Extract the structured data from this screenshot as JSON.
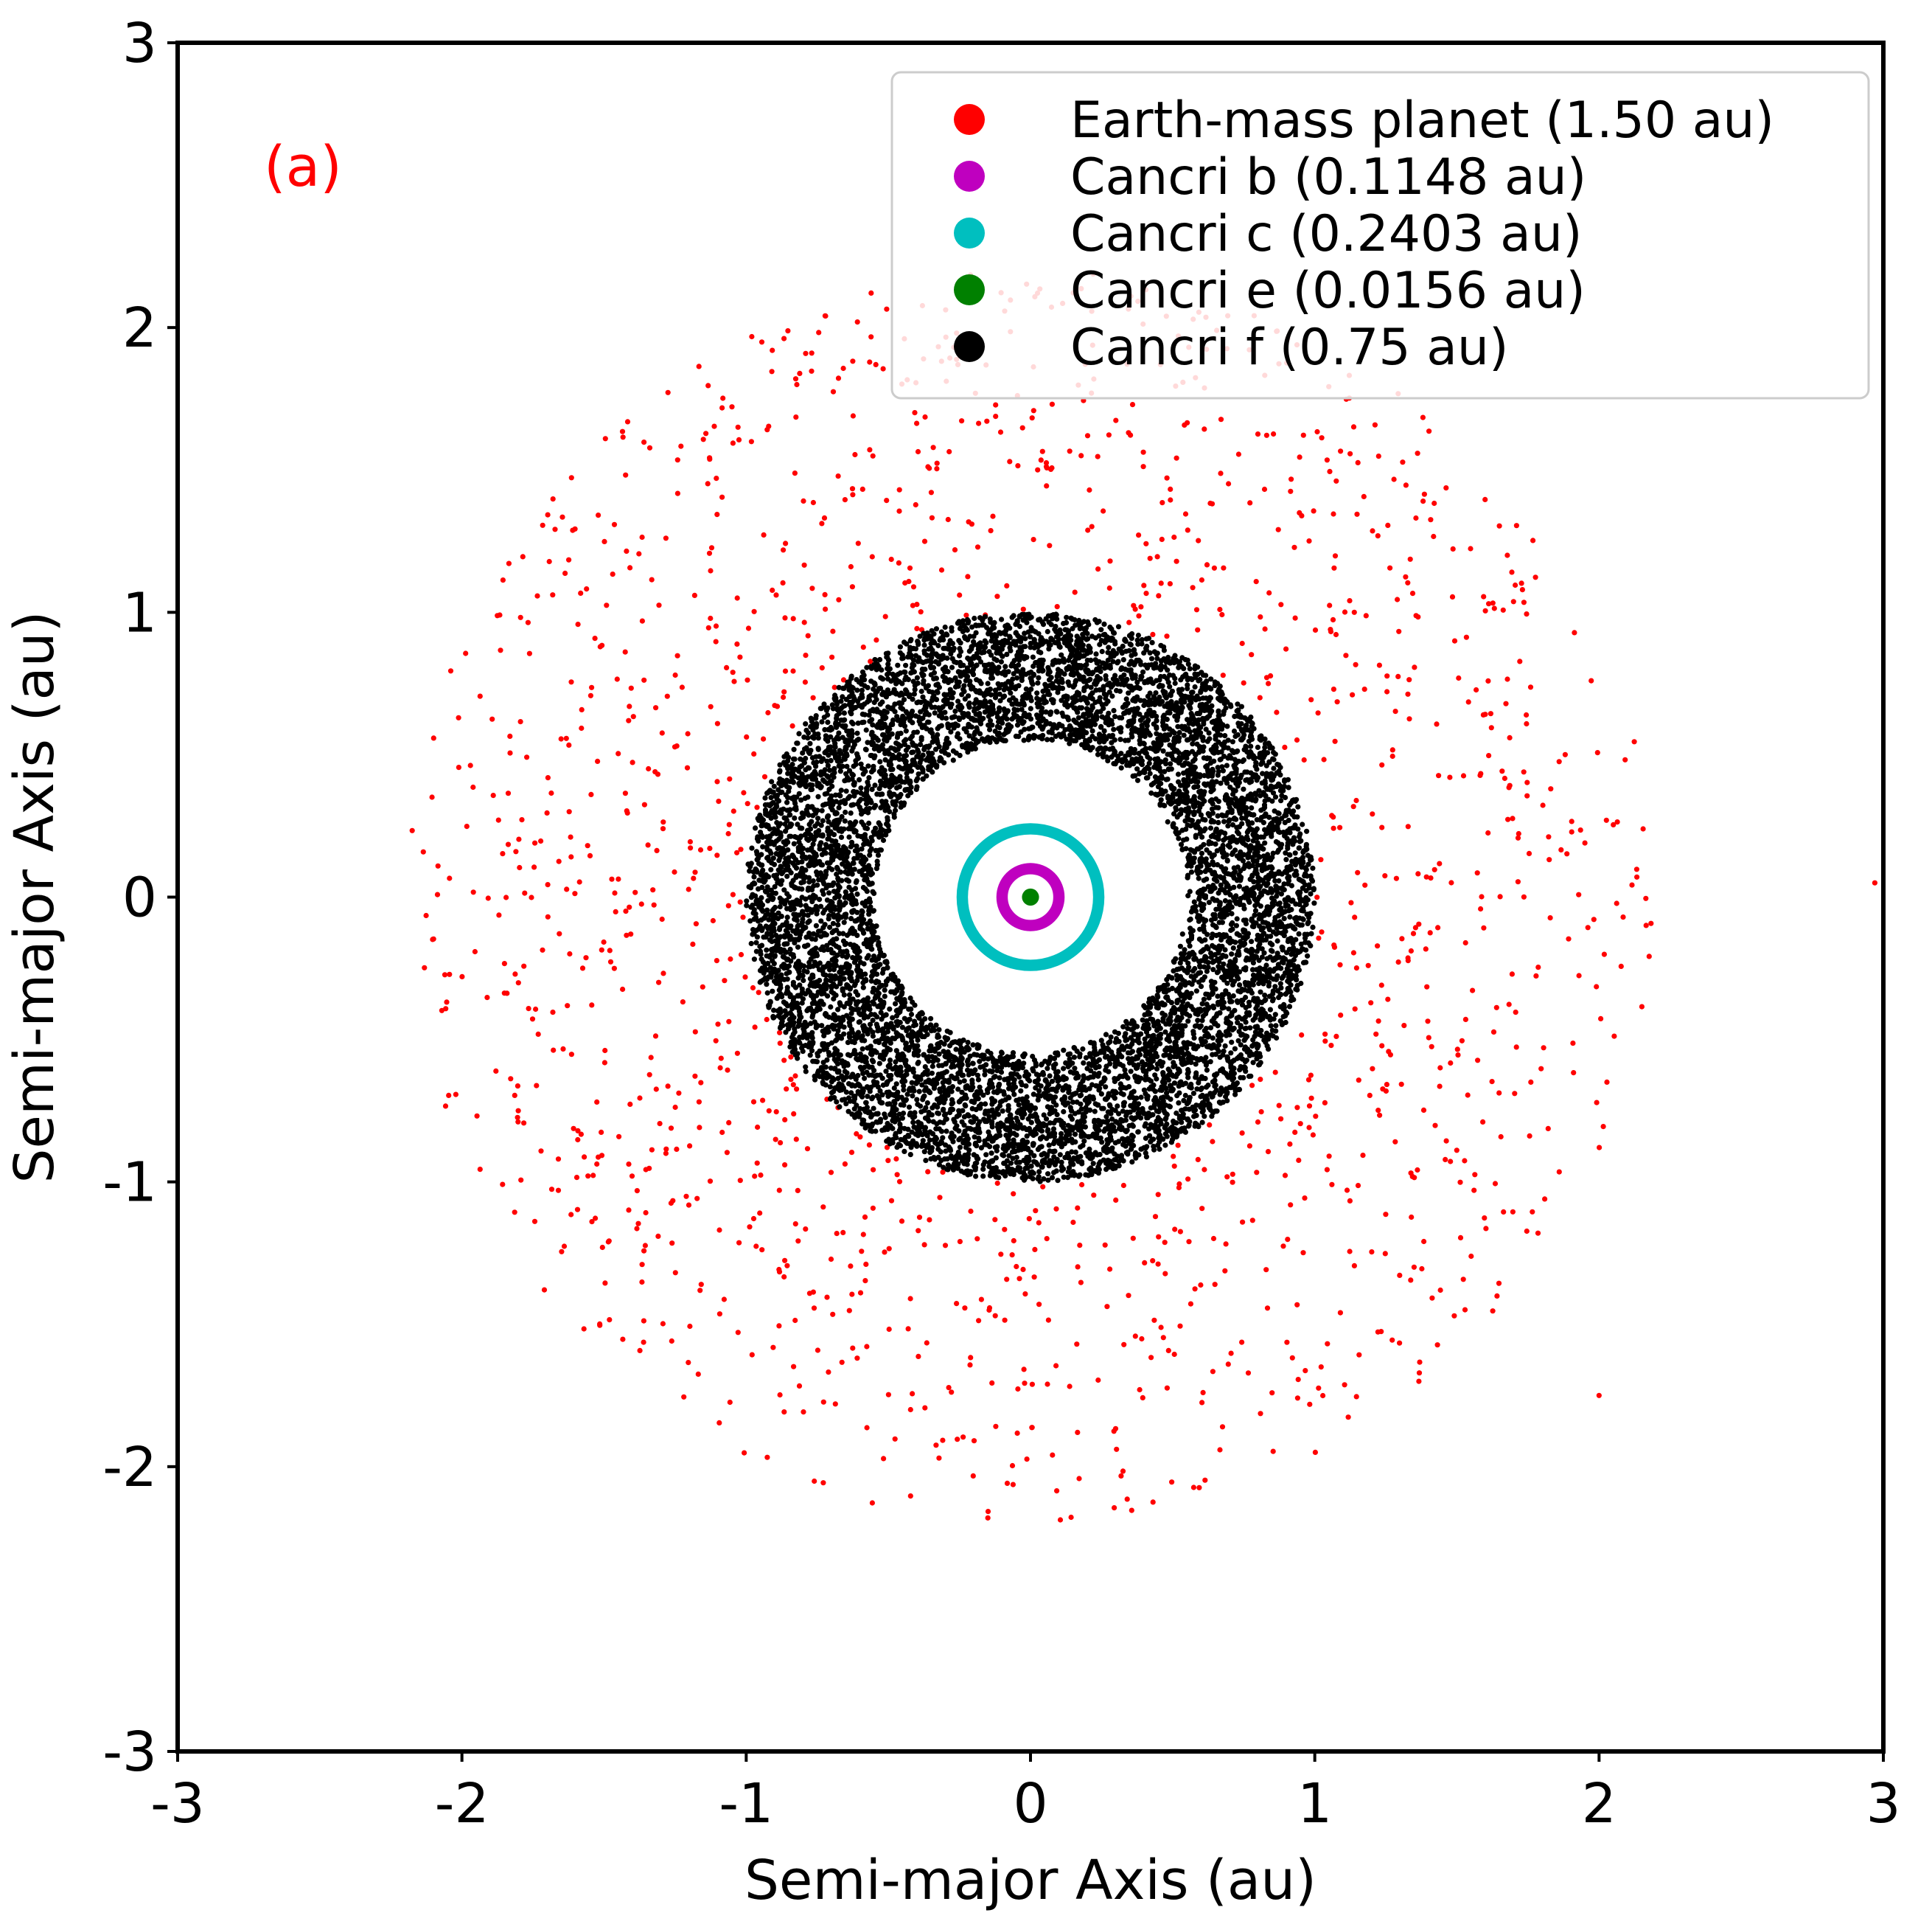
{
  "chart_data": {
    "type": "scatter",
    "panel_label": "(a)",
    "panel_label_color": "#ff0000",
    "xlabel": "Semi-major Axis (au)",
    "ylabel": "Semi-major Axis (au)",
    "xlim": [
      -3,
      3
    ],
    "ylim": [
      -3,
      3
    ],
    "xticks": [
      -3,
      -2,
      -1,
      0,
      1,
      2,
      3
    ],
    "yticks": [
      -3,
      -2,
      -1,
      0,
      1,
      2,
      3
    ],
    "xtick_labels": [
      "-3",
      "-2",
      "-1",
      "0",
      "1",
      "2",
      "3"
    ],
    "ytick_labels": [
      "-3",
      "-2",
      "-1",
      "0",
      "1",
      "2",
      "3"
    ],
    "grid": false,
    "legend_position": "top-right",
    "series": [
      {
        "name": "Earth-mass planet (1.50 au)",
        "color": "#ff0000",
        "distribution": "scattered annulus",
        "r_min": 1.0,
        "r_max": 2.2,
        "n_points": 1400,
        "outliers": [
          [
            2.97,
            0.05
          ],
          [
            2.0,
            -1.75
          ],
          [
            -0.15,
            -2.18
          ]
        ]
      },
      {
        "name": "Cancri b (0.1148 au)",
        "color": "#bf00bf",
        "distribution": "ring",
        "r_min": 0.08,
        "r_max": 0.12
      },
      {
        "name": "Cancri c (0.2403 au)",
        "color": "#00bfbf",
        "distribution": "ring",
        "r_min": 0.22,
        "r_max": 0.26
      },
      {
        "name": "Cancri e (0.0156 au)",
        "color": "#008000",
        "distribution": "disk",
        "r_min": 0.0,
        "r_max": 0.03
      },
      {
        "name": "Cancri f (0.75 au)",
        "color": "#000000",
        "distribution": "dense annulus",
        "r_min": 0.55,
        "r_max": 1.0,
        "n_points": 9000
      }
    ]
  }
}
